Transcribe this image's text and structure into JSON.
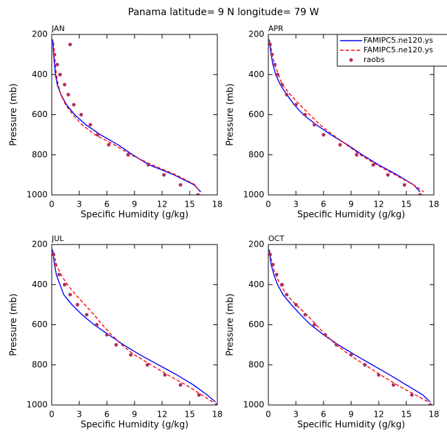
{
  "title": "Panama  latitude= 9 N longitude= 79 W",
  "chart_data": [
    {
      "type": "line",
      "title": "JAN",
      "xlabel": "Specific Humidity (g/kg)",
      "ylabel": "Pressure (mb)",
      "xlim": [
        0,
        18
      ],
      "ylim": [
        1000,
        200
      ],
      "xticks": [
        0,
        3,
        6,
        9,
        12,
        15,
        18
      ],
      "yticks": [
        200,
        400,
        600,
        800,
        1000
      ],
      "series": [
        {
          "name": "FAMIPC5.ne120.ys",
          "color": "#0000ff",
          "style": "solid",
          "x": [
            0.1,
            0.2,
            0.3,
            0.4,
            0.6,
            1.0,
            1.6,
            2.5,
            3.7,
            5.3,
            7.2,
            8.8,
            10.6,
            13.3,
            15.5,
            16.2
          ],
          "y": [
            225,
            300,
            350,
            400,
            450,
            500,
            550,
            600,
            650,
            700,
            750,
            800,
            850,
            900,
            950,
            985
          ]
        },
        {
          "name": "FAMIPC5.ne120.ys",
          "color": "#ff0000",
          "style": "dashed",
          "x": [
            0.2,
            0.3,
            0.4,
            0.5,
            0.7,
            1.0,
            1.5,
            2.3,
            3.3,
            4.7,
            6.8,
            8.6,
            10.9,
            13.5,
            15.6,
            16.1
          ],
          "y": [
            240,
            300,
            350,
            400,
            450,
            500,
            550,
            600,
            650,
            700,
            750,
            800,
            850,
            900,
            950,
            985
          ]
        },
        {
          "name": "raobs",
          "color": "#b03060",
          "style": "points",
          "x": [
            2.0,
            0.3,
            0.6,
            0.9,
            1.4,
            1.8,
            2.4,
            3.2,
            4.2,
            5.0,
            6.2,
            8.3,
            10.5,
            12.2,
            14.0,
            15.9
          ],
          "y": [
            250,
            300,
            350,
            400,
            450,
            500,
            550,
            600,
            650,
            700,
            750,
            800,
            850,
            900,
            950,
            1000
          ]
        }
      ]
    },
    {
      "type": "line",
      "title": "APR",
      "xlabel": "Specific Humidity (g/kg)",
      "ylabel": "Pressure (mb)",
      "xlim": [
        0,
        18
      ],
      "ylim": [
        1000,
        200
      ],
      "xticks": [
        0,
        3,
        6,
        9,
        12,
        15,
        18
      ],
      "yticks": [
        200,
        400,
        600,
        800,
        1000
      ],
      "legend": "upper right",
      "series": [
        {
          "name": "FAMIPC5.ne120.ys",
          "color": "#0000ff",
          "style": "solid",
          "x": [
            0.1,
            0.3,
            0.5,
            0.8,
            1.3,
            2.0,
            2.8,
            3.8,
            5.2,
            6.8,
            8.6,
            10.2,
            12.0,
            14.0,
            15.8,
            16.5
          ],
          "y": [
            225,
            300,
            350,
            400,
            450,
            500,
            550,
            600,
            650,
            700,
            750,
            800,
            850,
            900,
            950,
            985
          ]
        },
        {
          "name": "FAMIPC5.ne120.ys",
          "color": "#ff0000",
          "style": "dashed",
          "x": [
            0.2,
            0.4,
            0.7,
            1.1,
            1.5,
            2.4,
            3.4,
            4.5,
            5.6,
            7.0,
            8.5,
            10.0,
            11.8,
            13.8,
            15.8,
            16.9
          ],
          "y": [
            240,
            300,
            350,
            400,
            450,
            500,
            550,
            600,
            650,
            700,
            750,
            800,
            850,
            900,
            950,
            985
          ]
        },
        {
          "name": "raobs",
          "color": "#b03060",
          "style": "points",
          "x": [
            0.2,
            0.4,
            0.7,
            1.0,
            1.5,
            2.0,
            3.0,
            4.0,
            5.0,
            6.0,
            7.8,
            9.6,
            11.4,
            13.0,
            14.8,
            16.5
          ],
          "y": [
            250,
            300,
            350,
            400,
            450,
            500,
            550,
            600,
            650,
            700,
            750,
            800,
            850,
            900,
            950,
            1000
          ]
        }
      ]
    },
    {
      "type": "line",
      "title": "JUL",
      "xlabel": "Specific Humidity (g/kg)",
      "ylabel": "Pressure (mb)",
      "xlim": [
        0,
        18
      ],
      "ylim": [
        1000,
        200
      ],
      "xticks": [
        0,
        3,
        6,
        9,
        12,
        15,
        18
      ],
      "yticks": [
        200,
        400,
        600,
        800,
        1000
      ],
      "series": [
        {
          "name": "FAMIPC5.ne120.ys",
          "color": "#0000ff",
          "style": "solid",
          "x": [
            0.1,
            0.3,
            0.5,
            0.9,
            1.3,
            2.2,
            3.3,
            4.6,
            6.2,
            7.8,
            9.6,
            11.6,
            13.6,
            15.4,
            16.9,
            17.8
          ],
          "y": [
            225,
            300,
            350,
            400,
            450,
            500,
            550,
            600,
            650,
            700,
            750,
            800,
            850,
            900,
            950,
            985
          ]
        },
        {
          "name": "FAMIPC5.ne120.ys",
          "color": "#ff0000",
          "style": "dashed",
          "x": [
            0.2,
            0.5,
            1.0,
            1.7,
            2.6,
            3.6,
            4.6,
            5.5,
            6.5,
            7.6,
            9.0,
            10.8,
            12.6,
            14.6,
            16.3,
            17.5
          ],
          "y": [
            240,
            300,
            350,
            400,
            450,
            500,
            550,
            600,
            650,
            700,
            750,
            800,
            850,
            900,
            950,
            985
          ]
        },
        {
          "name": "raobs",
          "color": "#b03060",
          "style": "points",
          "x": [
            0.2,
            0.4,
            0.8,
            1.4,
            2.0,
            2.8,
            3.8,
            4.9,
            6.0,
            7.0,
            8.6,
            10.4,
            12.3,
            14.0,
            16.0,
            17.9
          ],
          "y": [
            250,
            300,
            350,
            400,
            450,
            500,
            550,
            600,
            650,
            700,
            750,
            800,
            850,
            900,
            950,
            1000
          ]
        }
      ]
    },
    {
      "type": "line",
      "title": "OCT",
      "xlabel": "Specific Humidity (g/kg)",
      "ylabel": "Pressure (mb)",
      "xlim": [
        0,
        18
      ],
      "ylim": [
        1000,
        200
      ],
      "xticks": [
        0,
        3,
        6,
        9,
        12,
        15,
        18
      ],
      "yticks": [
        200,
        400,
        600,
        800,
        1000
      ],
      "series": [
        {
          "name": "FAMIPC5.ne120.ys",
          "color": "#0000ff",
          "style": "solid",
          "x": [
            0.1,
            0.3,
            0.6,
            1.0,
            1.6,
            2.5,
            3.5,
            4.6,
            6.0,
            7.6,
            9.4,
            11.3,
            13.2,
            15.0,
            16.8,
            17.6
          ],
          "y": [
            225,
            300,
            350,
            400,
            450,
            500,
            550,
            600,
            650,
            700,
            750,
            800,
            850,
            900,
            950,
            985
          ]
        },
        {
          "name": "FAMIPC5.ne120.ys",
          "color": "#ff0000",
          "style": "dashed",
          "x": [
            0.2,
            0.4,
            0.8,
            1.3,
            2.0,
            3.0,
            4.2,
            5.2,
            6.2,
            7.4,
            8.8,
            10.5,
            12.2,
            14.0,
            16.0,
            17.4
          ],
          "y": [
            240,
            300,
            350,
            400,
            450,
            500,
            550,
            600,
            650,
            700,
            750,
            800,
            850,
            900,
            950,
            985
          ]
        },
        {
          "name": "raobs",
          "color": "#b03060",
          "style": "points",
          "x": [
            0.2,
            0.5,
            0.9,
            1.5,
            2.0,
            3.0,
            4.0,
            5.0,
            6.2,
            7.4,
            9.0,
            10.5,
            12.0,
            13.6,
            15.6,
            17.6
          ],
          "y": [
            250,
            300,
            350,
            400,
            450,
            500,
            550,
            600,
            650,
            700,
            750,
            800,
            850,
            900,
            950,
            1000
          ]
        }
      ]
    }
  ]
}
